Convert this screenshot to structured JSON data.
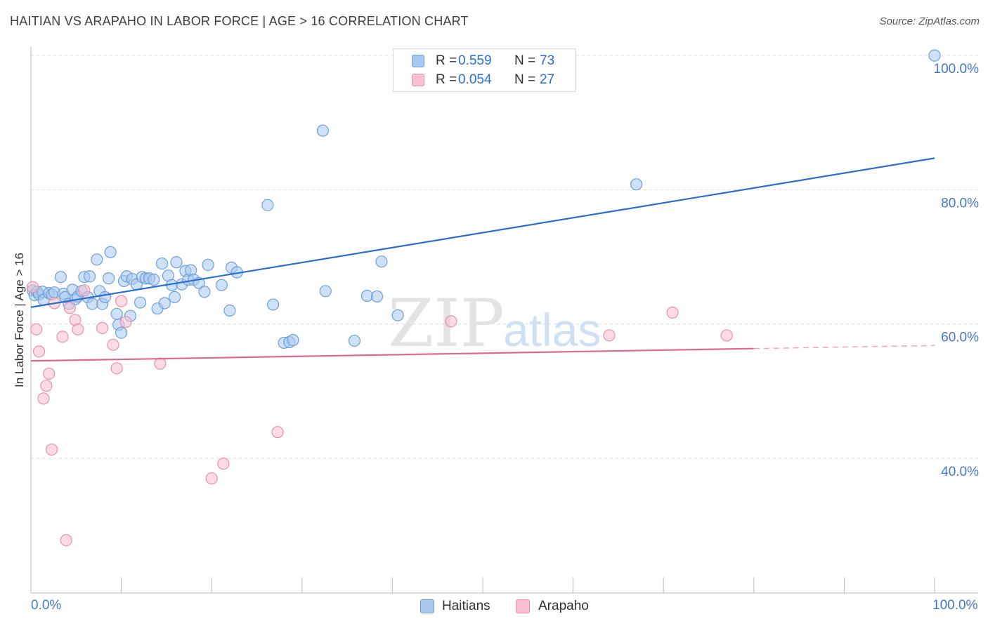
{
  "header": {
    "title": "HAITIAN VS ARAPAHO IN LABOR FORCE | AGE > 16 CORRELATION CHART",
    "source": "Source: ZipAtlas.com"
  },
  "watermark": {
    "part1": "ZIP",
    "part2": "atlas"
  },
  "legend": {
    "series": [
      {
        "r_label": "R = ",
        "r_value": "0.559",
        "n_label": "N = ",
        "n_value": "73",
        "color": "#a8c8f0",
        "border": "#6f9fd8"
      },
      {
        "r_label": "R = ",
        "r_value": "0.054",
        "n_label": "N = ",
        "n_value": "27",
        "color": "#f8c0d0",
        "border": "#e890aa"
      }
    ]
  },
  "bottom_legend": {
    "haitians": "Haitians",
    "arapaho": "Arapaho"
  },
  "colors": {
    "blue_fill": "#a8c8f0",
    "blue_stroke": "#6f9fd8",
    "blue_line": "#2a6fd0",
    "pink_fill": "#f8c0d0",
    "pink_stroke": "#e890aa",
    "pink_line": "#e06890",
    "axis_text": "#4477cc",
    "grid": "#dddddd"
  },
  "chart_data": {
    "type": "scatter",
    "title": "HAITIAN VS ARAPAHO IN LABOR FORCE | AGE > 16 CORRELATION CHART",
    "xlabel": "",
    "ylabel": "In Labor Force | Age > 16",
    "xlim": [
      0,
      100
    ],
    "ylim": [
      20,
      102
    ],
    "x_tick_labels": [
      "0.0%",
      "100.0%"
    ],
    "y_ticks": [
      40,
      60,
      80,
      100
    ],
    "y_tick_labels": [
      "40.0%",
      "60.0%",
      "80.0%",
      "100.0%"
    ],
    "grid": true,
    "legend_position": "top-center",
    "series": [
      {
        "name": "Haitians",
        "r": 0.559,
        "n": 73,
        "trend": {
          "x0": 0,
          "y0": 62.5,
          "x1": 100,
          "y1": 84.7,
          "dashed_from": null
        },
        "points": [
          [
            0.2,
            65.0
          ],
          [
            0.4,
            64.3
          ],
          [
            0.7,
            64.8
          ],
          [
            0.9,
            64.4
          ],
          [
            1.3,
            64.8
          ],
          [
            1.4,
            63.6
          ],
          [
            2.0,
            64.6
          ],
          [
            2.3,
            64.4
          ],
          [
            2.6,
            64.7
          ],
          [
            3.3,
            67.0
          ],
          [
            3.6,
            64.5
          ],
          [
            3.8,
            64.0
          ],
          [
            4.2,
            63.0
          ],
          [
            4.6,
            65.1
          ],
          [
            4.9,
            63.7
          ],
          [
            5.2,
            64.1
          ],
          [
            5.6,
            64.9
          ],
          [
            5.9,
            67.0
          ],
          [
            6.3,
            64.0
          ],
          [
            6.5,
            67.1
          ],
          [
            6.8,
            63.0
          ],
          [
            7.3,
            69.6
          ],
          [
            7.6,
            64.9
          ],
          [
            7.9,
            63.0
          ],
          [
            8.2,
            64.0
          ],
          [
            8.6,
            66.8
          ],
          [
            8.8,
            70.7
          ],
          [
            9.5,
            61.5
          ],
          [
            9.7,
            59.9
          ],
          [
            10.0,
            58.7
          ],
          [
            10.3,
            66.4
          ],
          [
            10.6,
            67.1
          ],
          [
            11.0,
            61.2
          ],
          [
            11.2,
            66.7
          ],
          [
            11.7,
            65.9
          ],
          [
            12.1,
            63.2
          ],
          [
            12.3,
            67.0
          ],
          [
            12.7,
            66.8
          ],
          [
            13.1,
            66.8
          ],
          [
            13.6,
            66.6
          ],
          [
            14.0,
            62.3
          ],
          [
            14.5,
            69.0
          ],
          [
            14.8,
            63.1
          ],
          [
            15.2,
            67.2
          ],
          [
            15.6,
            65.8
          ],
          [
            15.9,
            64.0
          ],
          [
            16.1,
            69.2
          ],
          [
            16.7,
            65.9
          ],
          [
            17.1,
            67.9
          ],
          [
            17.4,
            66.6
          ],
          [
            17.7,
            68.0
          ],
          [
            18.0,
            66.6
          ],
          [
            18.6,
            66.1
          ],
          [
            19.2,
            64.8
          ],
          [
            19.6,
            68.8
          ],
          [
            21.1,
            65.8
          ],
          [
            22.0,
            62.0
          ],
          [
            22.2,
            68.4
          ],
          [
            22.8,
            67.7
          ],
          [
            26.2,
            77.7
          ],
          [
            26.8,
            62.9
          ],
          [
            28.0,
            57.2
          ],
          [
            28.6,
            57.3
          ],
          [
            29.0,
            57.6
          ],
          [
            32.3,
            88.8
          ],
          [
            32.6,
            64.9
          ],
          [
            35.8,
            57.5
          ],
          [
            37.2,
            64.2
          ],
          [
            38.3,
            64.1
          ],
          [
            38.8,
            69.3
          ],
          [
            40.6,
            61.3
          ],
          [
            67.0,
            80.8
          ],
          [
            100.0,
            100.0
          ]
        ]
      },
      {
        "name": "Arapaho",
        "r": 0.054,
        "n": 27,
        "trend": {
          "x0": 0,
          "y0": 54.5,
          "x1": 100,
          "y1": 56.8,
          "dashed_from": 80
        },
        "points": [
          [
            0.2,
            65.5
          ],
          [
            0.6,
            59.2
          ],
          [
            0.9,
            55.9
          ],
          [
            1.4,
            48.9
          ],
          [
            1.7,
            50.8
          ],
          [
            2.0,
            52.6
          ],
          [
            2.3,
            41.3
          ],
          [
            2.6,
            63.1
          ],
          [
            3.5,
            58.1
          ],
          [
            3.9,
            27.8
          ],
          [
            4.3,
            62.4
          ],
          [
            4.9,
            60.6
          ],
          [
            5.2,
            59.2
          ],
          [
            5.9,
            65.0
          ],
          [
            7.9,
            59.4
          ],
          [
            9.1,
            56.9
          ],
          [
            9.5,
            53.4
          ],
          [
            10.0,
            63.4
          ],
          [
            10.5,
            60.3
          ],
          [
            14.3,
            54.1
          ],
          [
            20.0,
            37.0
          ],
          [
            21.3,
            39.2
          ],
          [
            27.3,
            43.9
          ],
          [
            46.5,
            60.4
          ],
          [
            64.0,
            58.3
          ],
          [
            71.0,
            61.7
          ],
          [
            77.0,
            58.3
          ]
        ]
      }
    ]
  }
}
